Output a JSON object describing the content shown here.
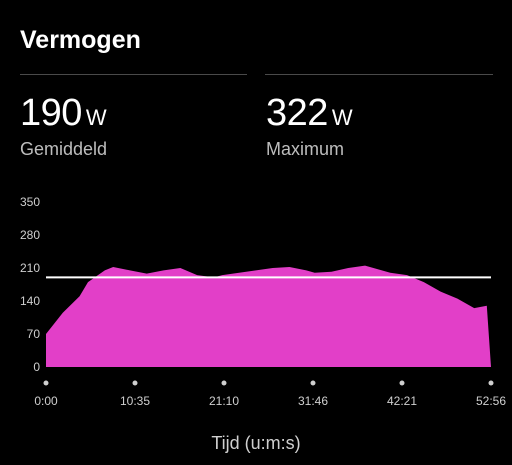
{
  "header": {
    "title": "Vermogen"
  },
  "stats": [
    {
      "value": "190",
      "unit": "W",
      "label": "Gemiddeld"
    },
    {
      "value": "322",
      "unit": "W",
      "label": "Maximum"
    }
  ],
  "colors": {
    "fill": "#E23FC8",
    "average_line": "#FFFFFF",
    "text": "#FFFFFF",
    "muted": "#BDBDBD"
  },
  "chart_data": {
    "type": "area",
    "title": "",
    "xlabel": "Tijd (u:m:s)",
    "ylabel": "",
    "ylim": [
      0,
      350
    ],
    "y_ticks": [
      "350",
      "280",
      "210",
      "140",
      "70",
      "0"
    ],
    "x_ticks": [
      "0:00",
      "10:35",
      "21:10",
      "31:46",
      "42:21",
      "52:56"
    ],
    "x_minutes": [
      0,
      2,
      4,
      5,
      7,
      8,
      10,
      12,
      14,
      16,
      18,
      20,
      21,
      23,
      25,
      27,
      29,
      31,
      32,
      34,
      36,
      38,
      40,
      41,
      43,
      45,
      47,
      49,
      51,
      52.5,
      53
    ],
    "values": [
      70,
      115,
      150,
      180,
      205,
      212,
      205,
      198,
      205,
      210,
      195,
      190,
      195,
      200,
      205,
      210,
      212,
      205,
      200,
      202,
      210,
      215,
      205,
      200,
      195,
      180,
      160,
      145,
      125,
      130,
      0
    ],
    "average": 190,
    "legend": "none"
  }
}
